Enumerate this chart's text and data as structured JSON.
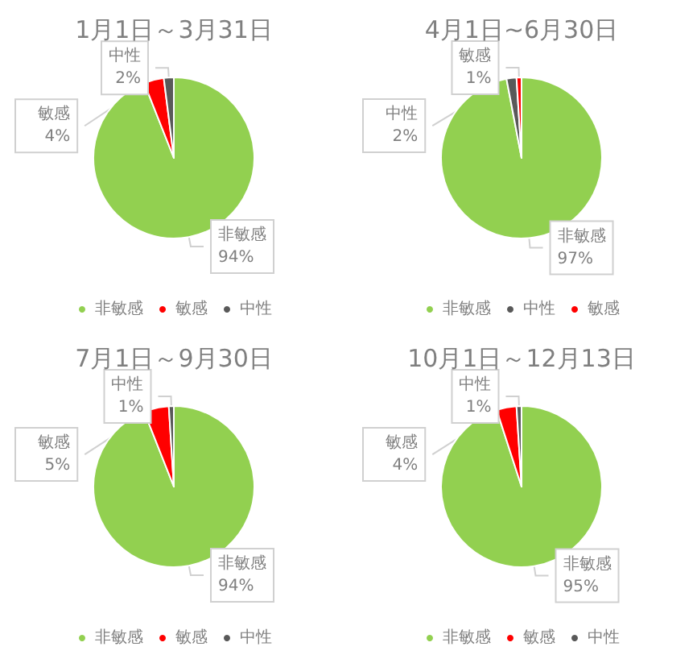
{
  "chart_data": [
    {
      "type": "pie",
      "title": "1月1日～3月31日",
      "categories": [
        "非敏感",
        "敏感",
        "中性"
      ],
      "values": [
        94,
        4,
        2
      ],
      "value_labels": [
        "94%",
        "4%",
        "2%"
      ],
      "colors": [
        "#92d050",
        "#ff0000",
        "#595959"
      ],
      "legend": "bottom"
    },
    {
      "type": "pie",
      "title": "4月1日~6月30日",
      "categories": [
        "非敏感",
        "中性",
        "敏感"
      ],
      "values": [
        97,
        2,
        1
      ],
      "value_labels": [
        "97%",
        "2%",
        "1%"
      ],
      "colors": [
        "#92d050",
        "#595959",
        "#ff0000"
      ],
      "legend": "bottom"
    },
    {
      "type": "pie",
      "title": "7月1日～9月30日",
      "categories": [
        "非敏感",
        "敏感",
        "中性"
      ],
      "values": [
        94,
        5,
        1
      ],
      "value_labels": [
        "94%",
        "5%",
        "1%"
      ],
      "colors": [
        "#92d050",
        "#ff0000",
        "#595959"
      ],
      "legend": "bottom"
    },
    {
      "type": "pie",
      "title": "10月1日～12月13日",
      "categories": [
        "非敏感",
        "敏感",
        "中性"
      ],
      "values": [
        95,
        4,
        1
      ],
      "value_labels": [
        "95%",
        "4%",
        "1%"
      ],
      "colors": [
        "#92d050",
        "#ff0000",
        "#595959"
      ],
      "legend": "bottom"
    }
  ]
}
